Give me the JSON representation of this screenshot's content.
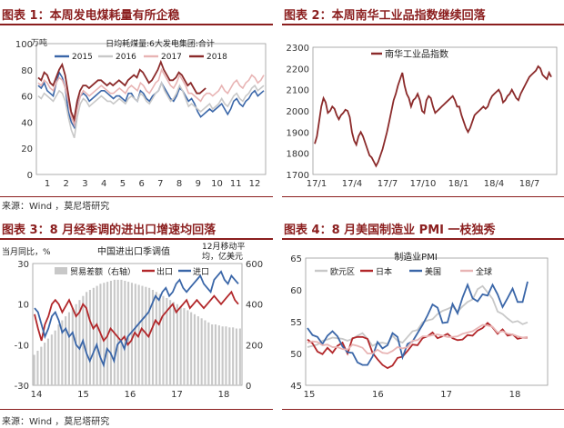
{
  "panels": {
    "p1": {
      "title": "图表 1：本周发电煤耗量有所企稳"
    },
    "p2": {
      "title": "图表 2：本周南华工业品指数继续回落"
    },
    "p3": {
      "title": "图表 3：8 月经季调的进出口增速均回落"
    },
    "p4": {
      "title": "图表 4：8 月美国制造业 PMI 一枝独秀"
    }
  },
  "source_top": "来源：Wind ，莫尼塔研究",
  "source_bottom": "来源：Wind ，莫尼塔研究",
  "colors": {
    "title": "#8b1e1e",
    "red": "#b2272a",
    "blue": "#3a66a8",
    "gray": "#bdbdbd",
    "pink": "#e8b4b4",
    "dark_red": "#8b2a2a"
  },
  "chart_data": [
    {
      "type": "line",
      "title": "日均耗煤量:6大发电集团:合计",
      "unit": "万吨",
      "x_ticks": [
        "1",
        "2",
        "3",
        "4",
        "5",
        "6",
        "7",
        "8",
        "9",
        "10",
        "11",
        "12"
      ],
      "ylim": [
        0,
        100
      ],
      "y_ticks": [
        "0",
        "20",
        "40",
        "60",
        "80",
        "100"
      ],
      "series": [
        {
          "name": "2015",
          "color": "#3a66a8",
          "values": [
            68,
            66,
            70,
            64,
            62,
            60,
            70,
            78,
            74,
            66,
            48,
            40,
            36,
            52,
            60,
            62,
            60,
            56,
            58,
            60,
            62,
            64,
            64,
            62,
            60,
            58,
            60,
            60,
            58,
            56,
            62,
            62,
            58,
            56,
            64,
            62,
            58,
            56,
            60,
            62,
            64,
            70,
            66,
            62,
            58,
            56,
            60,
            66,
            64,
            60,
            56,
            58,
            54,
            48,
            44,
            46,
            48,
            50,
            48,
            50,
            52,
            54,
            50,
            46,
            50,
            56,
            58,
            54,
            52,
            56,
            58,
            62,
            64,
            60,
            62,
            64
          ]
        },
        {
          "name": "2016",
          "color": "#c8c8c8",
          "values": [
            60,
            58,
            62,
            60,
            58,
            56,
            60,
            64,
            62,
            56,
            44,
            34,
            28,
            44,
            54,
            58,
            56,
            52,
            54,
            56,
            58,
            60,
            58,
            56,
            56,
            54,
            56,
            58,
            56,
            54,
            58,
            60,
            58,
            56,
            62,
            60,
            56,
            54,
            58,
            62,
            64,
            70,
            64,
            60,
            56,
            58,
            62,
            68,
            64,
            58,
            52,
            54,
            52,
            50,
            48,
            50,
            52,
            54,
            50,
            52,
            54,
            58,
            54,
            52,
            56,
            60,
            62,
            58,
            56,
            60,
            62,
            66,
            68,
            64,
            66,
            68
          ]
        },
        {
          "name": "2017",
          "color": "#e8b4b4",
          "values": [
            70,
            68,
            72,
            70,
            66,
            64,
            70,
            74,
            72,
            66,
            56,
            44,
            38,
            50,
            60,
            64,
            62,
            60,
            62,
            64,
            66,
            68,
            66,
            64,
            62,
            62,
            64,
            66,
            64,
            62,
            66,
            68,
            66,
            64,
            70,
            68,
            64,
            62,
            66,
            70,
            72,
            80,
            76,
            72,
            68,
            66,
            70,
            76,
            72,
            68,
            62,
            62,
            60,
            58,
            56,
            60,
            62,
            62,
            60,
            62,
            64,
            68,
            64,
            62,
            66,
            70,
            72,
            68,
            66,
            70,
            72,
            76,
            74,
            70,
            72,
            76
          ]
        },
        {
          "name": "2018",
          "color": "#8b2a2a",
          "values": [
            74,
            72,
            78,
            76,
            70,
            68,
            74,
            80,
            84,
            76,
            62,
            48,
            42,
            56,
            64,
            68,
            68,
            66,
            68,
            70,
            72,
            72,
            70,
            68,
            70,
            68,
            70,
            72,
            70,
            68,
            72,
            74,
            76,
            74,
            80,
            78,
            74,
            70,
            72,
            76,
            80,
            86,
            80,
            76,
            72,
            72,
            74,
            78,
            76,
            72,
            68,
            70,
            66,
            62,
            62,
            64,
            66
          ]
        }
      ]
    },
    {
      "type": "line",
      "series": [
        {
          "name": "南华工业品指数",
          "color": "#8b2a2a",
          "values": [
            1845,
            1880,
            1950,
            2020,
            2060,
            2040,
            1990,
            2000,
            2020,
            2010,
            1980,
            1960,
            1980,
            1990,
            2005,
            2000,
            1970,
            1900,
            1860,
            1840,
            1880,
            1900,
            1880,
            1850,
            1820,
            1790,
            1780,
            1760,
            1740,
            1760,
            1790,
            1820,
            1860,
            1900,
            1950,
            2000,
            2050,
            2080,
            2120,
            2150,
            2180,
            2120,
            2080,
            2060,
            2020,
            2050,
            2060,
            2080,
            2050,
            2000,
            1990,
            2050,
            2070,
            2060,
            2020,
            1990,
            2000,
            2010,
            2020,
            2030,
            2040,
            2050,
            2060,
            2070,
            2050,
            2020,
            2020,
            1980,
            1950,
            1920,
            1900,
            1920,
            1950,
            1980,
            1990,
            2000,
            2010,
            2020,
            2010,
            2020,
            2050,
            2070,
            2080,
            2090,
            2100,
            2080,
            2040,
            2050,
            2070,
            2080,
            2100,
            2080,
            2060,
            2050,
            2080,
            2100,
            2120,
            2140,
            2160,
            2170,
            2180,
            2190,
            2210,
            2200,
            2170,
            2160,
            2150,
            2180,
            2160
          ]
        }
      ],
      "x_ticks": [
        "17/1",
        "17/4",
        "17/7",
        "17/10",
        "18/1",
        "18/4",
        "18/7"
      ],
      "ylim": [
        1700,
        2300
      ],
      "y_ticks": [
        "1700",
        "1800",
        "1900",
        "2000",
        "2100",
        "2200",
        "2300"
      ]
    },
    {
      "type": "bar+line",
      "title": "中国进出口季调值",
      "left_unit": "当月同比，%",
      "right_unit": "12月移动平均，亿美元",
      "x_ticks": [
        "14",
        "15",
        "16",
        "17",
        "18"
      ],
      "left_ylim": [
        -30,
        30
      ],
      "left_y_ticks": [
        "-30",
        "-10",
        "10",
        "30"
      ],
      "right_ylim": [
        0,
        600
      ],
      "right_y_ticks": [
        "0",
        "200",
        "400",
        "600"
      ],
      "bars": {
        "name": "贸易差额（右轴）",
        "color": "#c8c8c8",
        "values": [
          150,
          170,
          190,
          210,
          230,
          250,
          270,
          300,
          320,
          340,
          360,
          380,
          400,
          420,
          440,
          460,
          470,
          480,
          490,
          500,
          505,
          510,
          515,
          520,
          520,
          520,
          515,
          510,
          505,
          500,
          495,
          490,
          485,
          480,
          470,
          460,
          450,
          440,
          430,
          420,
          410,
          400,
          390,
          380,
          370,
          360,
          350,
          340,
          330,
          320,
          310,
          300,
          300,
          295,
          290,
          290,
          285,
          285,
          280,
          280
        ]
      },
      "series": [
        {
          "name": "出口",
          "color": "#b2272a",
          "values": [
            5,
            -2,
            -8,
            0,
            4,
            10,
            12,
            10,
            6,
            9,
            12,
            8,
            4,
            6,
            10,
            8,
            2,
            -2,
            0,
            -4,
            -8,
            -6,
            -2,
            -4,
            -6,
            -8,
            -6,
            -10,
            -8,
            -4,
            -6,
            -2,
            -4,
            -6,
            -2,
            2,
            0,
            4,
            6,
            8,
            10,
            6,
            8,
            10,
            12,
            8,
            10,
            12,
            10,
            8,
            10,
            12,
            14,
            12,
            10,
            12,
            14,
            16,
            12,
            10
          ]
        },
        {
          "name": "进口",
          "color": "#3a66a8",
          "values": [
            8,
            6,
            0,
            -6,
            -2,
            4,
            6,
            2,
            -4,
            -2,
            -6,
            -4,
            -10,
            -12,
            -8,
            -14,
            -18,
            -14,
            -10,
            -16,
            -20,
            -12,
            -14,
            -18,
            -10,
            -8,
            -12,
            -6,
            -4,
            -2,
            0,
            2,
            4,
            6,
            10,
            14,
            12,
            16,
            18,
            14,
            16,
            20,
            22,
            18,
            16,
            18,
            20,
            22,
            24,
            20,
            18,
            16,
            22,
            24,
            26,
            22,
            20,
            24,
            22,
            20
          ]
        }
      ]
    },
    {
      "type": "line",
      "title": "制造业PMI",
      "x_ticks": [
        "15",
        "16",
        "17",
        "18"
      ],
      "ylim": [
        45,
        65
      ],
      "y_ticks": [
        "45",
        "50",
        "55",
        "60",
        "65"
      ],
      "series": [
        {
          "name": "欧元区",
          "color": "#c8c8c8",
          "values": [
            51.0,
            51.2,
            51.4,
            52.0,
            52.2,
            52.5,
            52.4,
            52.3,
            52.0,
            52.3,
            52.8,
            53.2,
            52.3,
            51.2,
            51.6,
            51.7,
            51.5,
            52.8,
            52.0,
            51.7,
            52.6,
            53.5,
            53.7,
            54.9,
            55.2,
            55.4,
            56.2,
            56.7,
            57.0,
            57.4,
            56.6,
            57.4,
            58.1,
            58.5,
            60.1,
            60.6,
            59.6,
            58.6,
            56.6,
            56.2,
            55.5,
            54.9,
            55.1,
            54.6,
            54.9
          ]
        },
        {
          "name": "日本",
          "color": "#b2272a",
          "values": [
            52.2,
            51.6,
            50.3,
            49.9,
            50.9,
            50.1,
            51.2,
            51.7,
            50.0,
            52.4,
            52.6,
            52.6,
            52.3,
            50.1,
            49.1,
            48.2,
            47.7,
            48.1,
            49.3,
            49.5,
            50.4,
            51.4,
            51.3,
            52.4,
            52.7,
            53.3,
            52.4,
            52.7,
            53.1,
            52.4,
            52.1,
            52.2,
            52.9,
            52.8,
            53.6,
            54.0,
            54.8,
            54.1,
            53.1,
            53.8,
            52.8,
            53.0,
            52.3,
            52.5,
            52.5
          ]
        },
        {
          "name": "美国",
          "color": "#3a66a8",
          "values": [
            54.0,
            52.9,
            52.6,
            51.5,
            52.8,
            53.5,
            52.7,
            51.1,
            50.2,
            50.1,
            48.6,
            48.2,
            48.2,
            49.5,
            51.8,
            50.8,
            51.3,
            53.2,
            52.6,
            49.4,
            51.5,
            51.9,
            53.2,
            54.5,
            56.0,
            57.7,
            57.2,
            54.8,
            54.9,
            57.8,
            56.3,
            58.8,
            60.8,
            58.7,
            58.2,
            59.3,
            59.1,
            60.8,
            59.3,
            57.3,
            58.7,
            60.2,
            58.1,
            58.1,
            61.3
          ]
        },
        {
          "name": "全球",
          "color": "#e8b4b4",
          "values": [
            51.7,
            51.9,
            51.8,
            51.3,
            51.4,
            51.0,
            51.0,
            50.7,
            50.6,
            51.4,
            51.2,
            50.9,
            50.0,
            50.0,
            50.6,
            50.1,
            50.0,
            50.4,
            51.0,
            50.8,
            51.0,
            52.0,
            52.1,
            52.7,
            52.7,
            52.9,
            53.0,
            52.8,
            52.6,
            52.6,
            52.7,
            53.1,
            53.3,
            53.5,
            54.0,
            54.5,
            54.4,
            54.2,
            53.3,
            53.5,
            53.1,
            53.0,
            52.7,
            52.5,
            52.6
          ]
        }
      ]
    }
  ]
}
